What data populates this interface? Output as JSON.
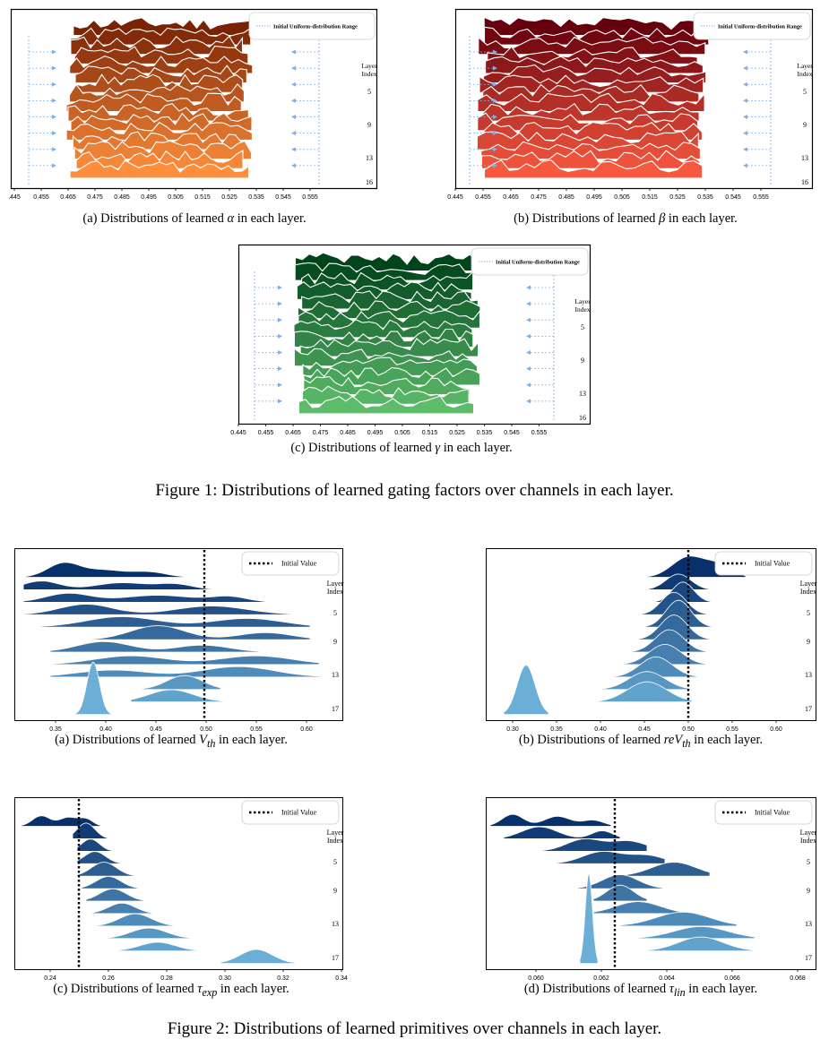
{
  "figure1": {
    "caption": "Figure 1: Distributions of learned gating factors over channels in each layer.",
    "legend_label": "Initial Uniform-distribution Range",
    "panels": [
      {
        "id": "a",
        "caption_pre": "(a) Distributions of learned ",
        "symbol": "α",
        "caption_post": " in each layer.",
        "palette": [
          "#7a2304",
          "#fd8e3c"
        ]
      },
      {
        "id": "b",
        "caption_pre": "(b) Distributions of learned ",
        "symbol": "β",
        "caption_post": " in each layer.",
        "palette": [
          "#67000d",
          "#f7593f"
        ]
      },
      {
        "id": "c",
        "caption_pre": "(c) Distributions of learned ",
        "symbol": "γ",
        "caption_post": " in each layer.",
        "palette": [
          "#00441b",
          "#5dbb6a"
        ]
      }
    ],
    "x_ticks": [
      "0.445",
      "0.455",
      "0.465",
      "0.475",
      "0.485",
      "0.495",
      "0.505",
      "0.515",
      "0.525",
      "0.535",
      "0.545",
      "0.555"
    ],
    "x_ticks_a": [
      ".445",
      "0.455",
      "0.465",
      "0.475",
      "0.485",
      "0.495",
      "0.505",
      "0.515",
      "0.525",
      "0.535",
      "0.545",
      "0.555"
    ],
    "layer_title": [
      "Layer",
      "Index"
    ],
    "layer_labels": [
      "5",
      "9",
      "13",
      "16"
    ]
  },
  "figure2": {
    "caption": "Figure 2: Distributions of learned primitives over channels in each layer.",
    "legend_label": "Initial Value",
    "layer_title": [
      "Layer",
      "Index"
    ],
    "layer_labels": [
      "5",
      "9",
      "13",
      "17"
    ],
    "panels": [
      {
        "id": "a",
        "caption_pre": "(a) Distributions of learned ",
        "symbol": "V",
        "sub": "th",
        "caption_post": " in each layer.",
        "x_ticks": [
          "0.35",
          "0.40",
          "0.45",
          "0.50",
          "0.55",
          "0.60"
        ],
        "initial_value": "0.50"
      },
      {
        "id": "b",
        "caption_pre": "(b) Distributions of learned ",
        "symbol": "reV",
        "sub": "th",
        "caption_post": " in each layer.",
        "x_ticks": [
          "0.30",
          "0.35",
          "0.40",
          "0.45",
          "0.50",
          "0.55",
          "0.60"
        ],
        "initial_value": "0.50"
      },
      {
        "id": "c",
        "caption_pre": "(c) Distributions of learned ",
        "symbol": "τ",
        "sub": "exp",
        "caption_post": " in each layer.",
        "x_ticks": [
          "0.24",
          "0.26",
          "0.28",
          "0.30",
          "0.32",
          "0.34"
        ],
        "initial_value": "0.25"
      },
      {
        "id": "d",
        "caption_pre": "(d) Distributions of learned ",
        "symbol": "τ",
        "sub": "lin",
        "caption_post": " in each layer.",
        "x_ticks": [
          "0.060",
          "0.062",
          "0.064",
          "0.066",
          "0.068"
        ],
        "initial_value": "0.0625"
      }
    ],
    "palette": [
      "#08306b",
      "#6baed6"
    ]
  }
}
